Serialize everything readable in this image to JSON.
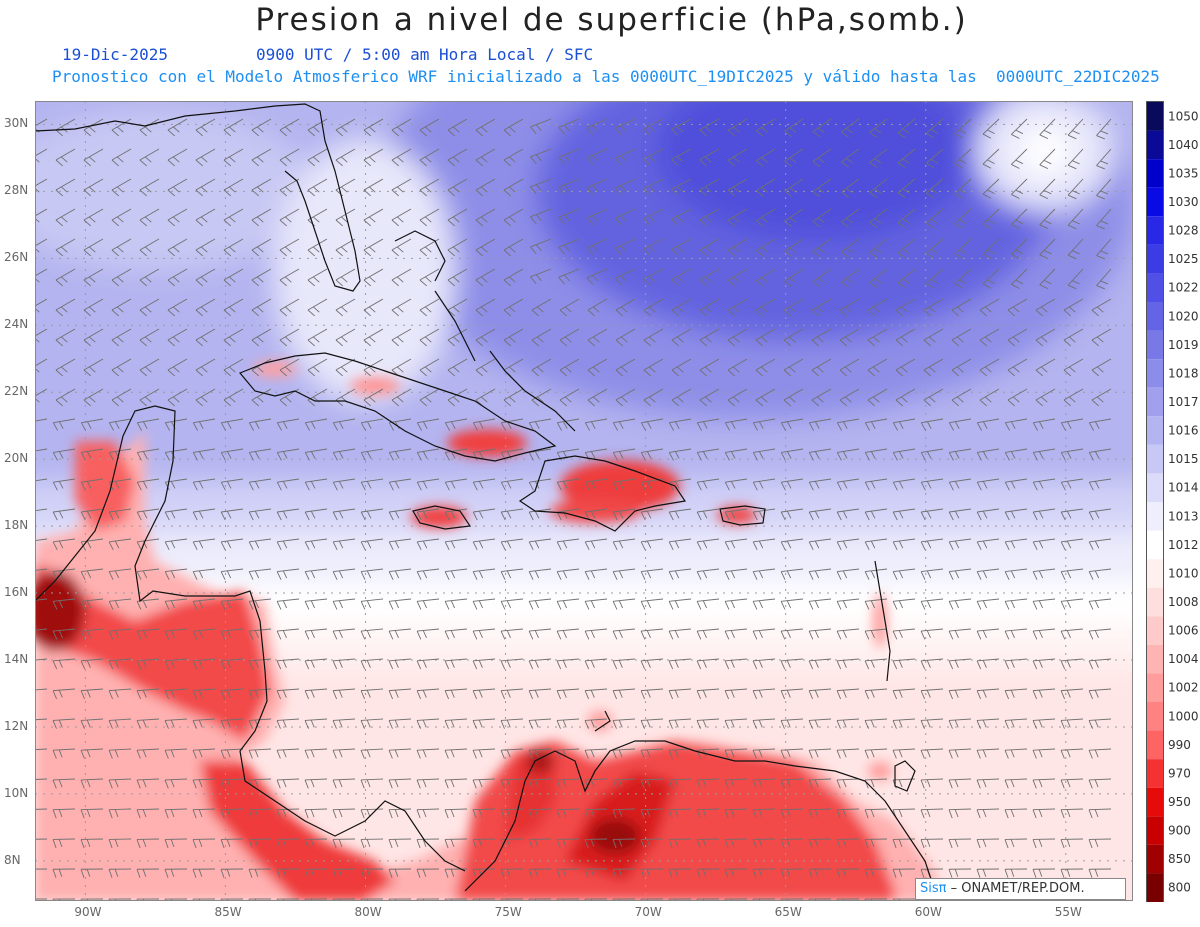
{
  "header": {
    "title": "Presion a nivel de superficie (hPa,somb.)",
    "date": "19-Dic-2025",
    "time_info": "0900 UTC / 5:00 am Hora Local / SFC",
    "model_info": "Pronostico con el Modelo Atmosferico WRF inicializado a las 0000UTC_19DIC2025 y válido hasta las  0000UTC_22DIC2025"
  },
  "map": {
    "lat_labels": [
      "30N",
      "28N",
      "26N",
      "24N",
      "22N",
      "20N",
      "18N",
      "16N",
      "14N",
      "12N",
      "10N",
      "8N"
    ],
    "lon_labels": [
      "90W",
      "85W",
      "80W",
      "75W",
      "70W",
      "65W",
      "60W",
      "55W"
    ],
    "lat_values": [
      30,
      28,
      26,
      24,
      22,
      20,
      18,
      16,
      14,
      12,
      10,
      8
    ],
    "lon_values": [
      -90,
      -85,
      -80,
      -75,
      -70,
      -65,
      -60,
      -55
    ],
    "extent": {
      "lon_min": -91.8,
      "lon_max": -52.6,
      "lat_min": 6.8,
      "lat_max": 30.7
    }
  },
  "colorbar": {
    "labels": [
      "1050",
      "1040",
      "1035",
      "1030",
      "1028",
      "1025",
      "1022",
      "1020",
      "1019",
      "1018",
      "1017",
      "1016",
      "1015",
      "1014",
      "1013",
      "1012",
      "1010",
      "1008",
      "1006",
      "1004",
      "1002",
      "1000",
      "990",
      "970",
      "950",
      "900",
      "850",
      "800"
    ],
    "colors": [
      "#0a0a5c",
      "#0a0a96",
      "#0000cc",
      "#0a0ae6",
      "#2828e6",
      "#3c3ce6",
      "#5050e6",
      "#6464e6",
      "#7878e6",
      "#8c8cea",
      "#a0a0ee",
      "#b4b4f2",
      "#c8c8f6",
      "#dcdcfa",
      "#eeeefc",
      "#ffffff",
      "#fff0f0",
      "#ffdede",
      "#ffcaca",
      "#ffb4b4",
      "#ff9c9c",
      "#ff8282",
      "#ff6464",
      "#f53232",
      "#e60a0a",
      "#c80000",
      "#a00000",
      "#780000"
    ]
  },
  "footer": {
    "logo_text": "Sisπ",
    "org": "– ONAMET/REP.DOM."
  }
}
